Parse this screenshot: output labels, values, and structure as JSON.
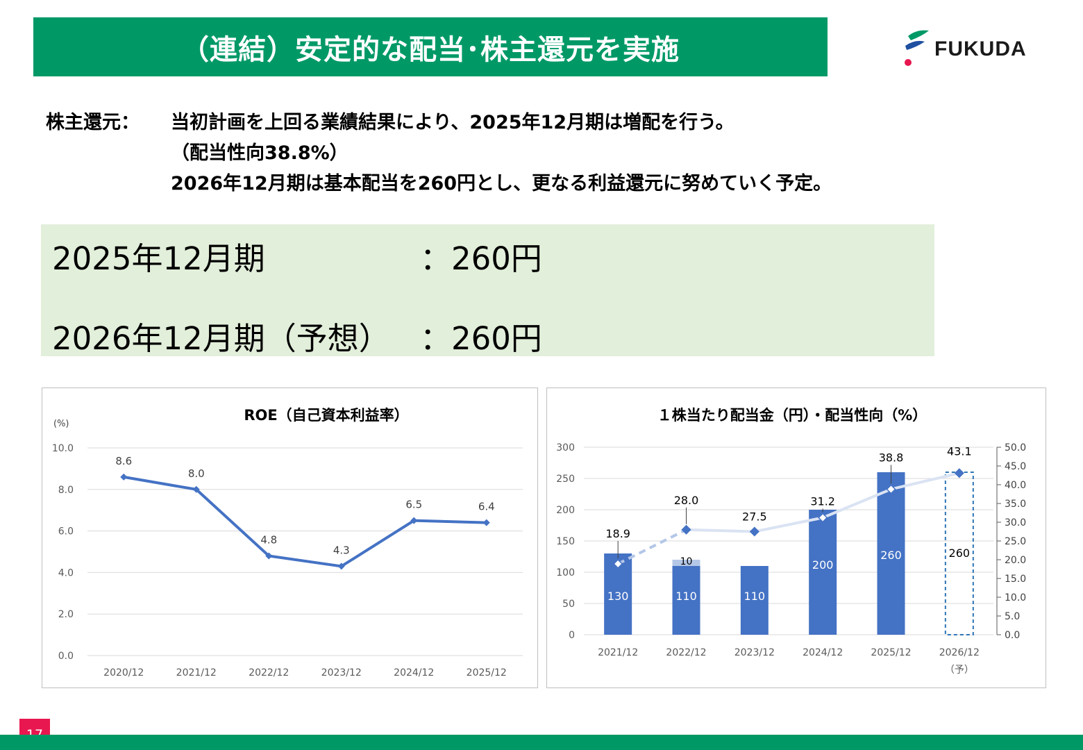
{
  "header": {
    "title": "（連結）安定的な配当･株主還元を実施"
  },
  "logo": {
    "text": "FUKUDA",
    "icon": "fukuda-logo-icon"
  },
  "shareholder": {
    "label": "株主還元：",
    "line1": "当初計画を上回る業績結果により、2025年12月期は増配を行う。",
    "line2": "（配当性向38.8%）",
    "line3": "2026年12月期は基本配当を260円とし、更なる利益還元に努めていく予定。"
  },
  "dividends": [
    {
      "period": "2025年12月期",
      "value": "：260円"
    },
    {
      "period": "2026年12月期（予想）",
      "value": "：260円"
    }
  ],
  "page_number": "17",
  "colors": {
    "brand_green": "#009966",
    "light_green": "#e2efda",
    "bar_blue": "#4472c4",
    "page_red": "#e8174f"
  },
  "chart_data": [
    {
      "type": "line",
      "title": "ROE（自己資本利益率）",
      "ylabel": "(%)",
      "categories": [
        "2020/12",
        "2021/12",
        "2022/12",
        "2023/12",
        "2024/12",
        "2025/12"
      ],
      "values": [
        8.6,
        8.0,
        4.8,
        4.3,
        6.5,
        6.4
      ],
      "data_labels": [
        "8.6",
        "8.0",
        "4.8",
        "4.3",
        "6.5",
        "6.4"
      ],
      "ylim": [
        0,
        10
      ],
      "yticks": [
        "0.0",
        "2.0",
        "4.0",
        "6.0",
        "8.0",
        "10.0"
      ],
      "grid": true
    },
    {
      "type": "bar",
      "title": "１株当たり配当金（円）・配当性向（%）",
      "categories": [
        "2021/12",
        "2022/12",
        "2023/12",
        "2024/12",
        "2025/12",
        "2026/12"
      ],
      "category_note": "（予）",
      "series": [
        {
          "values": [
            130,
            110,
            110,
            200,
            260,
            260
          ],
          "labels": [
            "130",
            "110",
            "110",
            "200",
            "260",
            "260"
          ]
        },
        {
          "values": [
            0,
            10,
            0,
            0,
            0,
            0
          ],
          "labels": [
            "",
            "10",
            "",
            "",
            "",
            ""
          ]
        }
      ],
      "payout_ratio": {
        "values": [
          18.9,
          28.0,
          27.5,
          31.2,
          38.8,
          43.1
        ],
        "labels": [
          "18.9",
          "28.0",
          "27.5",
          "31.2",
          "38.8",
          "43.1"
        ]
      },
      "ylim_left": [
        0,
        300
      ],
      "yticks_left": [
        "0",
        "50",
        "100",
        "150",
        "200",
        "250",
        "300"
      ],
      "ylim_right": [
        0,
        50
      ],
      "yticks_right": [
        "0.0",
        "5.0",
        "10.0",
        "15.0",
        "20.0",
        "25.0",
        "30.0",
        "35.0",
        "40.0",
        "45.0",
        "50.0"
      ],
      "grid": true
    }
  ]
}
